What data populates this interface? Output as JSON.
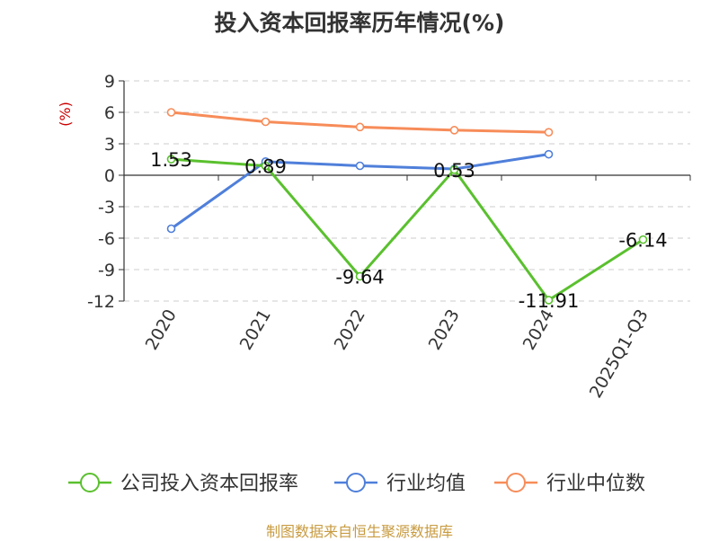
{
  "chart_data": {
    "type": "line",
    "title": "投入资本回报率历年情况(%)",
    "ylabel": "(%)",
    "xlabel": "",
    "categories": [
      "2020",
      "2021",
      "2022",
      "2023",
      "2024",
      "2025Q1-Q3"
    ],
    "ylim": [
      -12,
      9
    ],
    "yticks": [
      9,
      6,
      3,
      0,
      -3,
      -6,
      -9,
      -12
    ],
    "grid": true,
    "legend_position": "bottom",
    "series": [
      {
        "name": "公司投入资本回报率",
        "color": "#5ac02e",
        "values": [
          1.53,
          0.89,
          -9.64,
          0.53,
          -11.91,
          -6.14
        ],
        "labels": [
          "1.53",
          "0.89",
          "-9.64",
          "0.53",
          "-11.91",
          "-6.14"
        ]
      },
      {
        "name": "行业均值",
        "color": "#4f7fda",
        "values": [
          -5.1,
          1.3,
          0.9,
          0.6,
          2.0,
          null
        ]
      },
      {
        "name": "行业中位数",
        "color": "#f78c59",
        "values": [
          6.0,
          5.1,
          4.6,
          4.3,
          4.1,
          null
        ]
      }
    ]
  },
  "source_note": "制图数据来自恒生聚源数据库"
}
